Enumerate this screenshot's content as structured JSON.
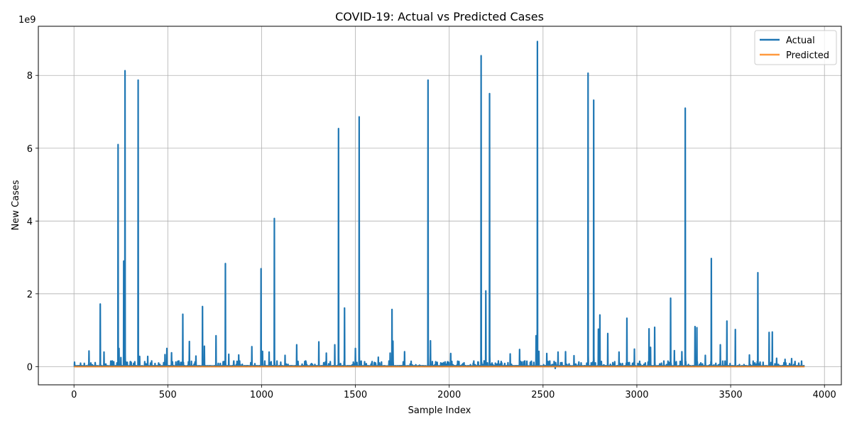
{
  "chart_data": {
    "type": "line",
    "title": "COVID-19: Actual vs Predicted Cases",
    "xlabel": "Sample Index",
    "ylabel": "New Cases",
    "y_scale_label": "1e9",
    "xlim": [
      -190,
      4090
    ],
    "ylim": [
      -500000000,
      9350000000
    ],
    "x_ticks": [
      0,
      500,
      1000,
      1500,
      2000,
      2500,
      3000,
      3500,
      4000
    ],
    "x_tick_labels": [
      "0",
      "500",
      "1000",
      "1500",
      "2000",
      "2500",
      "3000",
      "3500",
      "4000"
    ],
    "y_ticks": [
      0,
      2000000000,
      4000000000,
      6000000000,
      8000000000
    ],
    "y_tick_labels": [
      "0",
      "2",
      "4",
      "6",
      "8"
    ],
    "grid": true,
    "legend_position": "top-right",
    "n_points": 3895,
    "baseline_value": 20000000,
    "series": [
      {
        "name": "Actual",
        "color": "#1f77b4",
        "spikes": [
          [
            80,
            430000000
          ],
          [
            140,
            1720000000
          ],
          [
            160,
            400000000
          ],
          [
            235,
            6100000000
          ],
          [
            240,
            500000000
          ],
          [
            250,
            250000000
          ],
          [
            265,
            2900000000
          ],
          [
            272,
            8130000000
          ],
          [
            342,
            7870000000
          ],
          [
            350,
            280000000
          ],
          [
            393,
            280000000
          ],
          [
            485,
            330000000
          ],
          [
            495,
            500000000
          ],
          [
            520,
            380000000
          ],
          [
            580,
            1440000000
          ],
          [
            615,
            690000000
          ],
          [
            650,
            290000000
          ],
          [
            685,
            1650000000
          ],
          [
            695,
            560000000
          ],
          [
            757,
            850000000
          ],
          [
            807,
            2830000000
          ],
          [
            825,
            340000000
          ],
          [
            878,
            320000000
          ],
          [
            948,
            550000000
          ],
          [
            997,
            2690000000
          ],
          [
            1005,
            420000000
          ],
          [
            1040,
            400000000
          ],
          [
            1068,
            4070000000
          ],
          [
            1125,
            310000000
          ],
          [
            1187,
            600000000
          ],
          [
            1305,
            680000000
          ],
          [
            1345,
            370000000
          ],
          [
            1390,
            600000000
          ],
          [
            1410,
            6540000000
          ],
          [
            1442,
            1610000000
          ],
          [
            1500,
            500000000
          ],
          [
            1520,
            6860000000
          ],
          [
            1622,
            260000000
          ],
          [
            1685,
            370000000
          ],
          [
            1695,
            1570000000
          ],
          [
            1700,
            700000000
          ],
          [
            1762,
            410000000
          ],
          [
            1887,
            7870000000
          ],
          [
            1900,
            710000000
          ],
          [
            2008,
            360000000
          ],
          [
            2170,
            8540000000
          ],
          [
            2195,
            2080000000
          ],
          [
            2215,
            7500000000
          ],
          [
            2325,
            350000000
          ],
          [
            2375,
            470000000
          ],
          [
            2463,
            850000000
          ],
          [
            2470,
            8930000000
          ],
          [
            2478,
            420000000
          ],
          [
            2520,
            360000000
          ],
          [
            2580,
            400000000
          ],
          [
            2620,
            410000000
          ],
          [
            2665,
            300000000
          ],
          [
            2740,
            8060000000
          ],
          [
            2770,
            7320000000
          ],
          [
            2795,
            1030000000
          ],
          [
            2803,
            1420000000
          ],
          [
            2845,
            910000000
          ],
          [
            2905,
            400000000
          ],
          [
            2947,
            1330000000
          ],
          [
            2987,
            480000000
          ],
          [
            3065,
            1040000000
          ],
          [
            3073,
            530000000
          ],
          [
            3095,
            1080000000
          ],
          [
            3180,
            1880000000
          ],
          [
            3200,
            440000000
          ],
          [
            3240,
            410000000
          ],
          [
            3258,
            7100000000
          ],
          [
            3310,
            1100000000
          ],
          [
            3320,
            1070000000
          ],
          [
            3365,
            310000000
          ],
          [
            3397,
            2970000000
          ],
          [
            3445,
            600000000
          ],
          [
            3480,
            1250000000
          ],
          [
            3525,
            1020000000
          ],
          [
            3600,
            320000000
          ],
          [
            3645,
            2580000000
          ],
          [
            3705,
            940000000
          ],
          [
            3722,
            950000000
          ],
          [
            3745,
            230000000
          ],
          [
            3790,
            200000000
          ],
          [
            3825,
            220000000
          ],
          [
            2565,
            -50000000
          ]
        ]
      },
      {
        "name": "Predicted",
        "color": "#ff7f0e",
        "constant_value": 0
      }
    ]
  }
}
